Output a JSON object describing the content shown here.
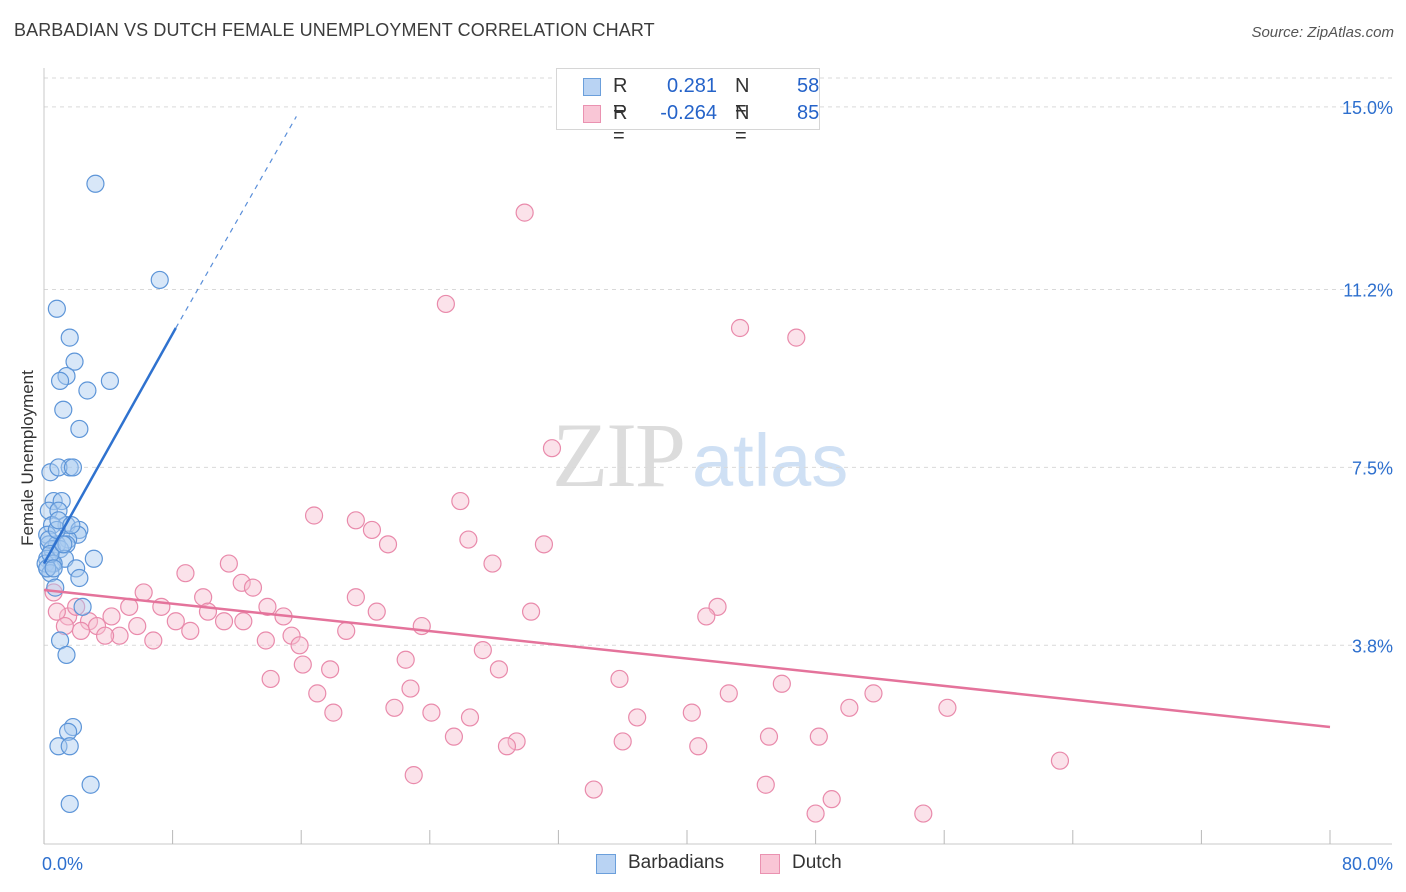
{
  "title": "BARBADIAN VS DUTCH FEMALE UNEMPLOYMENT CORRELATION CHART",
  "source": "Source: ZipAtlas.com",
  "watermark": {
    "zip": "ZIP",
    "atlas": "atlas"
  },
  "legend": {
    "rows": [
      {
        "r_label": "R =",
        "r_value": "0.281",
        "n_label": "N =",
        "n_value": "58"
      },
      {
        "r_label": "R =",
        "r_value": "-0.264",
        "n_label": "N =",
        "n_value": "85"
      }
    ]
  },
  "bottom_legend": {
    "barbadians": "Barbadians",
    "dutch": "Dutch"
  },
  "colors": {
    "barbadians_fill": "#a9c9f0",
    "barbadians_stroke": "#5d95d8",
    "barbadians_line": "#2f72cf",
    "dutch_fill": "#f7bfd0",
    "dutch_stroke": "#e98aab",
    "dutch_line": "#e4739b",
    "tick_text": "#2d6fce",
    "grid": "#d9d9d9"
  },
  "chart_data": {
    "type": "scatter",
    "title": "BARBADIAN VS DUTCH FEMALE UNEMPLOYMENT CORRELATION CHART",
    "xlabel": "",
    "ylabel": "Female Unemployment",
    "xlim": [
      0,
      80
    ],
    "ylim": [
      0,
      15.6
    ],
    "x_tick_labels": [
      {
        "value": 0,
        "label": "0.0%"
      },
      {
        "value": 80,
        "label": "80.0%"
      }
    ],
    "y_tick_labels": [
      {
        "value": 3.8,
        "label": "3.8%"
      },
      {
        "value": 7.5,
        "label": "7.5%"
      },
      {
        "value": 11.2,
        "label": "11.2%"
      },
      {
        "value": 15.0,
        "label": "15.0%"
      }
    ],
    "x_minor_ticks": [
      0,
      8,
      16,
      24,
      32,
      40,
      48,
      56,
      64,
      72,
      80
    ],
    "series": [
      {
        "name": "Barbadians",
        "R": 0.281,
        "N": 58,
        "trend": {
          "x0": 0,
          "y0": 5.5,
          "x1": 8.2,
          "y1": 10.4,
          "dash_x1": 15.7,
          "dash_y1": 14.8
        },
        "points": [
          [
            3.2,
            13.4
          ],
          [
            7.2,
            11.4
          ],
          [
            0.8,
            10.8
          ],
          [
            1.6,
            10.2
          ],
          [
            1.9,
            9.7
          ],
          [
            1.4,
            9.4
          ],
          [
            1.0,
            9.3
          ],
          [
            4.1,
            9.3
          ],
          [
            2.7,
            9.1
          ],
          [
            1.2,
            8.7
          ],
          [
            2.2,
            8.3
          ],
          [
            0.4,
            7.4
          ],
          [
            1.6,
            7.5
          ],
          [
            0.9,
            7.5
          ],
          [
            1.8,
            7.5
          ],
          [
            0.6,
            6.8
          ],
          [
            1.1,
            6.8
          ],
          [
            0.3,
            6.6
          ],
          [
            0.9,
            6.6
          ],
          [
            1.4,
            6.3
          ],
          [
            2.2,
            6.2
          ],
          [
            0.5,
            6.3
          ],
          [
            0.2,
            6.1
          ],
          [
            2.1,
            6.1
          ],
          [
            1.5,
            6.0
          ],
          [
            0.3,
            5.9
          ],
          [
            0.8,
            5.9
          ],
          [
            0.5,
            5.8
          ],
          [
            1.0,
            5.8
          ],
          [
            1.4,
            5.9
          ],
          [
            0.2,
            5.6
          ],
          [
            1.3,
            5.6
          ],
          [
            3.1,
            5.6
          ],
          [
            0.5,
            5.5
          ],
          [
            0.2,
            5.4
          ],
          [
            0.1,
            5.5
          ],
          [
            0.6,
            5.5
          ],
          [
            2.0,
            5.4
          ],
          [
            0.4,
            5.3
          ],
          [
            2.2,
            5.2
          ],
          [
            0.2,
            5.4
          ],
          [
            0.7,
            5.0
          ],
          [
            2.4,
            4.6
          ],
          [
            1.0,
            3.9
          ],
          [
            1.4,
            3.6
          ],
          [
            1.8,
            2.1
          ],
          [
            1.5,
            2.0
          ],
          [
            0.9,
            1.7
          ],
          [
            1.6,
            1.7
          ],
          [
            2.9,
            0.9
          ],
          [
            1.6,
            0.5
          ],
          [
            0.3,
            6.0
          ],
          [
            0.8,
            6.2
          ],
          [
            0.4,
            5.7
          ],
          [
            1.2,
            5.9
          ],
          [
            0.6,
            5.4
          ],
          [
            0.9,
            6.4
          ],
          [
            1.7,
            6.3
          ]
        ]
      },
      {
        "name": "Dutch",
        "R": -0.264,
        "N": 85,
        "trend": {
          "x0": 0,
          "y0": 4.95,
          "x1": 80,
          "y1": 2.1
        },
        "points": [
          [
            29.9,
            12.8
          ],
          [
            25.0,
            10.9
          ],
          [
            43.3,
            10.4
          ],
          [
            46.8,
            10.2
          ],
          [
            31.6,
            7.9
          ],
          [
            25.9,
            6.8
          ],
          [
            16.8,
            6.5
          ],
          [
            19.4,
            6.4
          ],
          [
            20.4,
            6.2
          ],
          [
            26.4,
            6.0
          ],
          [
            21.4,
            5.9
          ],
          [
            31.1,
            5.9
          ],
          [
            11.5,
            5.5
          ],
          [
            27.9,
            5.5
          ],
          [
            8.8,
            5.3
          ],
          [
            12.3,
            5.1
          ],
          [
            13.0,
            5.0
          ],
          [
            19.4,
            4.8
          ],
          [
            6.2,
            4.9
          ],
          [
            9.9,
            4.8
          ],
          [
            5.3,
            4.6
          ],
          [
            7.3,
            4.6
          ],
          [
            13.9,
            4.6
          ],
          [
            20.7,
            4.5
          ],
          [
            30.3,
            4.5
          ],
          [
            41.9,
            4.6
          ],
          [
            4.2,
            4.4
          ],
          [
            8.2,
            4.3
          ],
          [
            11.2,
            4.3
          ],
          [
            12.4,
            4.3
          ],
          [
            14.9,
            4.4
          ],
          [
            41.2,
            4.4
          ],
          [
            1.5,
            4.4
          ],
          [
            2.8,
            4.3
          ],
          [
            3.3,
            4.2
          ],
          [
            5.8,
            4.2
          ],
          [
            0.8,
            4.5
          ],
          [
            23.5,
            4.2
          ],
          [
            18.8,
            4.1
          ],
          [
            1.3,
            4.2
          ],
          [
            2.3,
            4.1
          ],
          [
            4.7,
            4.0
          ],
          [
            6.8,
            3.9
          ],
          [
            9.1,
            4.1
          ],
          [
            13.8,
            3.9
          ],
          [
            15.4,
            4.0
          ],
          [
            15.9,
            3.8
          ],
          [
            0.6,
            4.9
          ],
          [
            27.3,
            3.7
          ],
          [
            22.5,
            3.5
          ],
          [
            16.1,
            3.4
          ],
          [
            17.8,
            3.3
          ],
          [
            28.3,
            3.3
          ],
          [
            35.8,
            3.1
          ],
          [
            14.1,
            3.1
          ],
          [
            45.9,
            3.0
          ],
          [
            22.8,
            2.9
          ],
          [
            17.0,
            2.8
          ],
          [
            42.6,
            2.8
          ],
          [
            51.6,
            2.8
          ],
          [
            21.8,
            2.5
          ],
          [
            50.1,
            2.5
          ],
          [
            56.2,
            2.5
          ],
          [
            18.0,
            2.4
          ],
          [
            24.1,
            2.4
          ],
          [
            40.3,
            2.4
          ],
          [
            26.5,
            2.3
          ],
          [
            36.9,
            2.3
          ],
          [
            25.5,
            1.9
          ],
          [
            29.4,
            1.8
          ],
          [
            36.0,
            1.8
          ],
          [
            45.1,
            1.9
          ],
          [
            48.2,
            1.9
          ],
          [
            28.8,
            1.7
          ],
          [
            40.7,
            1.7
          ],
          [
            63.2,
            1.4
          ],
          [
            23.0,
            1.1
          ],
          [
            34.2,
            0.8
          ],
          [
            44.9,
            0.9
          ],
          [
            49.0,
            0.6
          ],
          [
            48.0,
            0.3
          ],
          [
            54.7,
            0.3
          ],
          [
            2.0,
            4.6
          ],
          [
            10.2,
            4.5
          ],
          [
            3.8,
            4.0
          ]
        ]
      }
    ]
  }
}
